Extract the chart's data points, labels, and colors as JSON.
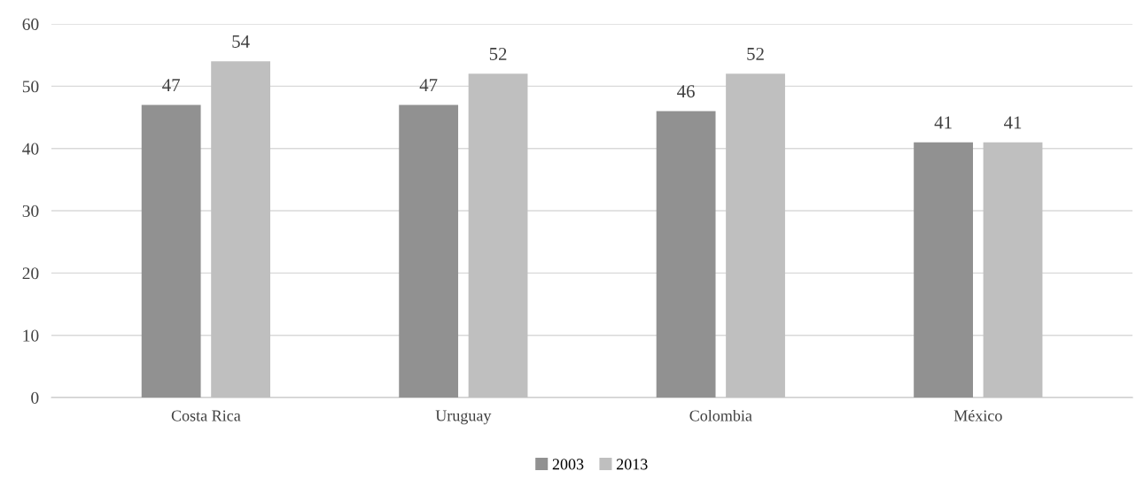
{
  "chart_data": {
    "type": "bar",
    "categories": [
      "Costa Rica",
      "Uruguay",
      "Colombia",
      "México"
    ],
    "series": [
      {
        "name": "2003",
        "color": "#919191",
        "values": [
          47,
          47,
          46,
          41
        ]
      },
      {
        "name": "2013",
        "color": "#bfbfbf",
        "values": [
          54,
          52,
          52,
          41
        ]
      }
    ],
    "ylim": [
      0,
      60
    ],
    "yticks": [
      0,
      10,
      20,
      30,
      40,
      50,
      60
    ],
    "grid": "y",
    "legend": "bottom",
    "data_labels": true
  }
}
